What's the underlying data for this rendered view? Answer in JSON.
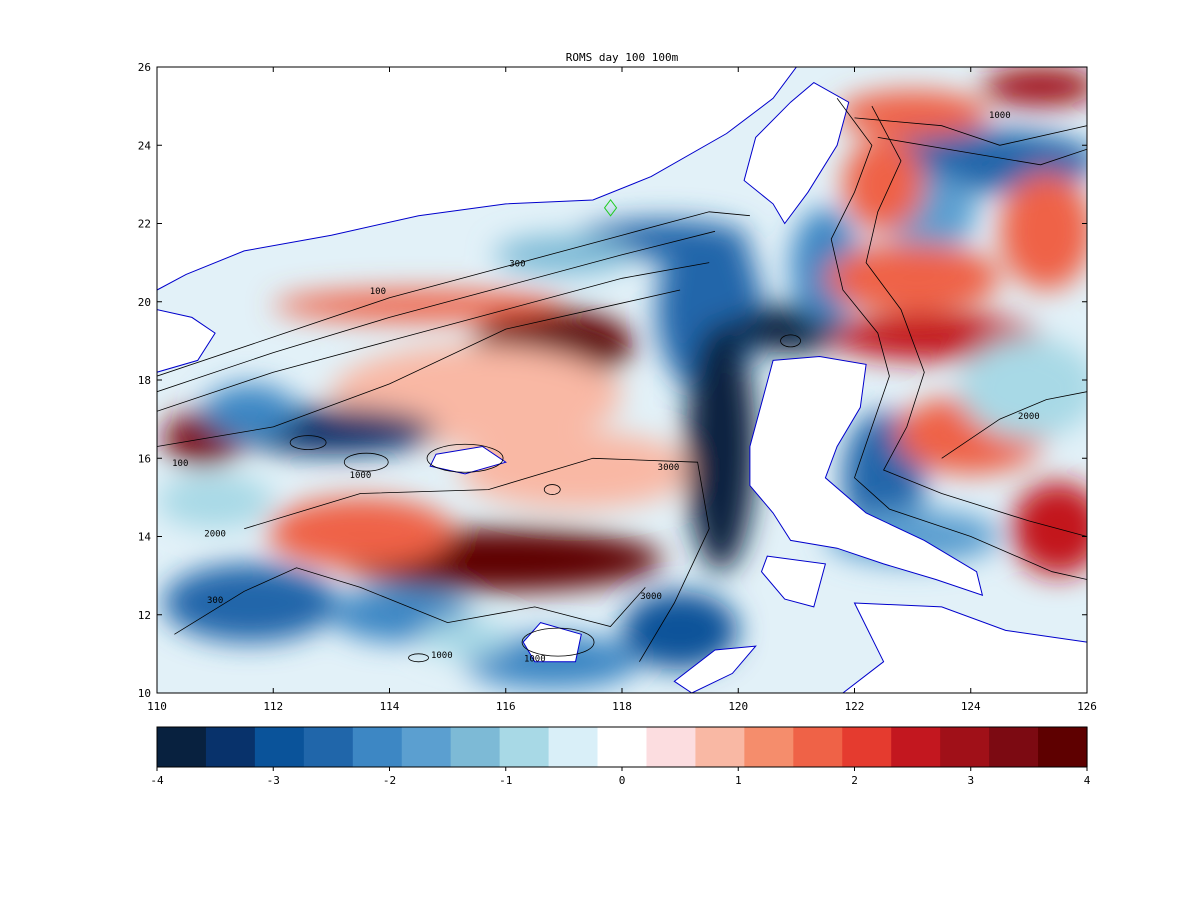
{
  "title": "ROMS  day  100 100m",
  "map": {
    "lon_range": [
      110,
      126
    ],
    "lat_range": [
      10,
      26
    ],
    "lon_ticks": [
      "110",
      "112",
      "114",
      "116",
      "118",
      "120",
      "122",
      "124",
      "126"
    ],
    "lat_ticks": [
      "10",
      "12",
      "14",
      "16",
      "18",
      "20",
      "22",
      "24",
      "26"
    ],
    "coastline_color": "#0000cc",
    "contour_color": "#000000",
    "marker_color": "#22cc22",
    "contour_labels": [
      {
        "text": "100",
        "lon": 113.8,
        "lat": 20.2
      },
      {
        "text": "300",
        "lon": 116.2,
        "lat": 20.9
      },
      {
        "text": "1000",
        "lon": 113.5,
        "lat": 15.5
      },
      {
        "text": "2000",
        "lon": 111.0,
        "lat": 14.0
      },
      {
        "text": "3000",
        "lon": 118.8,
        "lat": 15.7
      },
      {
        "text": "300",
        "lon": 111.0,
        "lat": 12.3
      },
      {
        "text": "1000",
        "lon": 116.5,
        "lat": 10.8
      },
      {
        "text": "3000",
        "lon": 118.5,
        "lat": 12.4
      },
      {
        "text": "1000",
        "lon": 124.5,
        "lat": 24.7
      },
      {
        "text": "2000",
        "lon": 125.0,
        "lat": 17.0
      },
      {
        "text": "1000",
        "lon": 114.9,
        "lat": 10.9
      },
      {
        "text": "100",
        "lon": 110.4,
        "lat": 15.8
      }
    ]
  },
  "anomalies": [
    {
      "lon": 116.8,
      "lat": 18.9,
      "rx": 1.4,
      "ry": 0.9,
      "v": 3.8
    },
    {
      "lon": 115.9,
      "lat": 13.4,
      "rx": 2.8,
      "ry": 0.8,
      "v": 3.6
    },
    {
      "lon": 110.8,
      "lat": 16.5,
      "rx": 0.7,
      "ry": 0.7,
      "v": 3.2
    },
    {
      "lon": 113.5,
      "lat": 14.1,
      "rx": 1.6,
      "ry": 0.9,
      "v": 1.8
    },
    {
      "lon": 115.5,
      "lat": 17.6,
      "rx": 2.5,
      "ry": 1.3,
      "v": 0.9
    },
    {
      "lon": 117.2,
      "lat": 15.7,
      "rx": 2.0,
      "ry": 1.0,
      "v": 0.8
    },
    {
      "lon": 114.5,
      "lat": 19.9,
      "rx": 2.5,
      "ry": 0.4,
      "v": 1.8
    },
    {
      "lon": 113.0,
      "lat": 16.7,
      "rx": 1.8,
      "ry": 0.6,
      "v": -3.5
    },
    {
      "lon": 111.6,
      "lat": 17.2,
      "rx": 0.8,
      "ry": 0.7,
      "v": -2.0
    },
    {
      "lon": 111.6,
      "lat": 12.3,
      "rx": 1.5,
      "ry": 1.0,
      "v": -2.5
    },
    {
      "lon": 114.2,
      "lat": 12.0,
      "rx": 1.2,
      "ry": 0.7,
      "v": -2.0
    },
    {
      "lon": 111.0,
      "lat": 14.9,
      "rx": 1.0,
      "ry": 0.7,
      "v": -1.0
    },
    {
      "lon": 118.7,
      "lat": 21.6,
      "rx": 1.5,
      "ry": 0.5,
      "v": -2.5
    },
    {
      "lon": 117.0,
      "lat": 21.2,
      "rx": 1.2,
      "ry": 0.5,
      "v": -1.2
    },
    {
      "lon": 119.5,
      "lat": 19.8,
      "rx": 0.9,
      "ry": 2.2,
      "v": -2.5
    },
    {
      "lon": 119.7,
      "lat": 16.3,
      "rx": 0.6,
      "ry": 3.2,
      "v": -3.8
    },
    {
      "lon": 120.9,
      "lat": 19.3,
      "rx": 1.0,
      "ry": 0.6,
      "v": -4.0
    },
    {
      "lon": 119.0,
      "lat": 11.6,
      "rx": 1.0,
      "ry": 1.0,
      "v": -2.8
    },
    {
      "lon": 121.5,
      "lat": 20.9,
      "rx": 0.6,
      "ry": 1.5,
      "v": -2.2
    },
    {
      "lon": 122.5,
      "lat": 15.5,
      "rx": 0.7,
      "ry": 1.7,
      "v": -2.5
    },
    {
      "lon": 123.0,
      "lat": 14.0,
      "rx": 1.5,
      "ry": 0.7,
      "v": -1.8
    },
    {
      "lon": 124.2,
      "lat": 23.6,
      "rx": 2.0,
      "ry": 0.8,
      "v": -2.5
    },
    {
      "lon": 123.3,
      "lat": 22.3,
      "rx": 0.8,
      "ry": 1.0,
      "v": -1.5
    },
    {
      "lon": 123.0,
      "lat": 24.8,
      "rx": 1.3,
      "ry": 0.6,
      "v": 1.5
    },
    {
      "lon": 125.2,
      "lat": 25.5,
      "rx": 1.0,
      "ry": 0.5,
      "v": 2.8
    },
    {
      "lon": 123.4,
      "lat": 19.1,
      "rx": 1.8,
      "ry": 0.6,
      "v": 2.6
    },
    {
      "lon": 123.0,
      "lat": 20.6,
      "rx": 1.5,
      "ry": 0.9,
      "v": 1.6
    },
    {
      "lon": 125.3,
      "lat": 21.8,
      "rx": 0.8,
      "ry": 1.5,
      "v": 1.8
    },
    {
      "lon": 124.0,
      "lat": 16.6,
      "rx": 1.3,
      "ry": 1.0,
      "v": 1.5
    },
    {
      "lon": 125.5,
      "lat": 14.2,
      "rx": 0.8,
      "ry": 1.2,
      "v": 2.4
    },
    {
      "lon": 125.0,
      "lat": 17.8,
      "rx": 1.2,
      "ry": 1.3,
      "v": -0.9
    },
    {
      "lon": 122.5,
      "lat": 23.0,
      "rx": 0.7,
      "ry": 1.2,
      "v": 1.5
    },
    {
      "lon": 116.8,
      "lat": 10.8,
      "rx": 1.5,
      "ry": 0.7,
      "v": -2.0
    },
    {
      "lon": 115.3,
      "lat": 11.4,
      "rx": 0.8,
      "ry": 0.5,
      "v": -0.8
    }
  ],
  "colorbar": {
    "min": -4,
    "max": 4,
    "tick_labels": [
      "-4",
      "-3",
      "-2",
      "-1",
      "0",
      "1",
      "2",
      "3",
      "4"
    ],
    "colors": [
      "#08213f",
      "#08326b",
      "#0a539a",
      "#2066aa",
      "#3d87c4",
      "#5b9fd0",
      "#7dbad6",
      "#a8d9e6",
      "#d9eff8",
      "#ffffff",
      "#fcdde0",
      "#f9b8a4",
      "#f58d6c",
      "#ef6247",
      "#e53b2f",
      "#c3171f",
      "#a01018",
      "#7c0a12",
      "#5e0000"
    ]
  }
}
